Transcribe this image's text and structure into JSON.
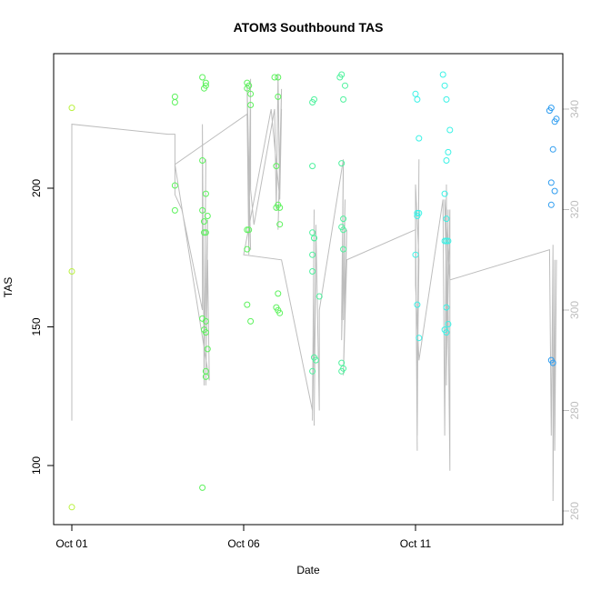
{
  "chart_data": {
    "type": "scatter",
    "title": "ATOM3 Southbound TAS",
    "xlabel": "Date",
    "ylabel": "TAS",
    "x_ticks": [
      {
        "label": "Oct 01",
        "day": 1
      },
      {
        "label": "Oct 06",
        "day": 6
      },
      {
        "label": "Oct 11",
        "day": 11
      }
    ],
    "xlim_days": [
      0.5,
      15.5
    ],
    "ylim": [
      80,
      245
    ],
    "y_ticks": [
      100,
      150,
      200
    ],
    "y2lim": [
      258,
      353
    ],
    "y2_ticks": [
      260,
      280,
      300,
      320,
      340
    ],
    "grid": false,
    "legend": "none",
    "colors": {
      "points_palette": [
        "#b9f23f",
        "#5cf25c",
        "#4ff29e",
        "#3bf2e6",
        "#2f9df0"
      ],
      "secondary_line": "#bdbdbd",
      "secondary_axis": "#bdbdbd",
      "box": "#000000"
    },
    "series": [
      {
        "color": "#b9f23f",
        "points": [
          [
            1.0,
            229
          ],
          [
            1.0,
            170
          ],
          [
            1.0,
            85
          ]
        ]
      },
      {
        "color": "#5cf25c",
        "points": [
          [
            4.0,
            233
          ],
          [
            4.0,
            231
          ],
          [
            4.0,
            201
          ],
          [
            4.0,
            192
          ],
          [
            4.8,
            240
          ],
          [
            4.9,
            238
          ],
          [
            4.85,
            236
          ],
          [
            4.9,
            237
          ],
          [
            4.8,
            210
          ],
          [
            4.8,
            192
          ],
          [
            4.9,
            198
          ],
          [
            4.95,
            190
          ],
          [
            4.85,
            184
          ],
          [
            4.9,
            184
          ],
          [
            4.85,
            188
          ],
          [
            4.9,
            152
          ],
          [
            4.85,
            149
          ],
          [
            4.9,
            148
          ],
          [
            4.95,
            142
          ],
          [
            4.9,
            134
          ],
          [
            4.9,
            132
          ],
          [
            4.8,
            153
          ],
          [
            4.8,
            92
          ],
          [
            6.1,
            238
          ],
          [
            6.15,
            237
          ],
          [
            6.2,
            234
          ],
          [
            6.1,
            236
          ],
          [
            6.2,
            230
          ],
          [
            6.1,
            185
          ],
          [
            6.15,
            185
          ],
          [
            6.1,
            178
          ],
          [
            6.1,
            158
          ],
          [
            6.2,
            152
          ],
          [
            6.9,
            240
          ],
          [
            7.0,
            240
          ],
          [
            7.0,
            233
          ],
          [
            6.95,
            208
          ],
          [
            7.0,
            194
          ],
          [
            6.95,
            193
          ],
          [
            7.05,
            193
          ],
          [
            7.05,
            187
          ],
          [
            7.0,
            162
          ],
          [
            6.95,
            157
          ],
          [
            7.0,
            156
          ],
          [
            7.05,
            155
          ]
        ]
      },
      {
        "color": "#4ff29e",
        "points": [
          [
            8.0,
            231
          ],
          [
            8.05,
            232
          ],
          [
            8.0,
            208
          ],
          [
            8.0,
            184
          ],
          [
            8.05,
            182
          ],
          [
            8.05,
            182
          ],
          [
            8.0,
            176
          ],
          [
            8.0,
            170
          ],
          [
            8.2,
            161
          ],
          [
            8.05,
            139
          ],
          [
            8.1,
            138
          ],
          [
            8.0,
            134
          ],
          [
            8.8,
            240
          ],
          [
            8.85,
            241
          ],
          [
            8.95,
            237
          ],
          [
            8.9,
            232
          ],
          [
            8.85,
            209
          ],
          [
            8.9,
            189
          ],
          [
            8.85,
            186
          ],
          [
            8.9,
            185
          ],
          [
            8.9,
            178
          ],
          [
            8.85,
            137
          ],
          [
            8.9,
            135
          ],
          [
            8.85,
            134
          ]
        ]
      },
      {
        "color": "#3bf2e6",
        "points": [
          [
            11.0,
            234
          ],
          [
            11.05,
            232
          ],
          [
            11.1,
            218
          ],
          [
            11.05,
            191
          ],
          [
            11.1,
            191
          ],
          [
            11.05,
            190
          ],
          [
            11.0,
            176
          ],
          [
            11.05,
            158
          ],
          [
            11.1,
            146
          ],
          [
            11.8,
            241
          ],
          [
            11.85,
            237
          ],
          [
            11.9,
            232
          ],
          [
            12.0,
            221
          ],
          [
            11.95,
            213
          ],
          [
            11.9,
            210
          ],
          [
            11.85,
            198
          ],
          [
            11.9,
            189
          ],
          [
            11.85,
            181
          ],
          [
            11.9,
            181
          ],
          [
            11.95,
            181
          ],
          [
            11.9,
            157
          ],
          [
            11.85,
            149
          ],
          [
            11.9,
            148
          ],
          [
            11.95,
            151
          ]
        ]
      },
      {
        "color": "#2f9df0",
        "points": [
          [
            14.9,
            228
          ],
          [
            14.95,
            229
          ],
          [
            15.05,
            224
          ],
          [
            15.1,
            225
          ],
          [
            15.0,
            214
          ],
          [
            14.95,
            202
          ],
          [
            15.05,
            199
          ],
          [
            14.95,
            194
          ],
          [
            14.95,
            138
          ],
          [
            15.0,
            137
          ]
        ]
      }
    ],
    "secondary_series": {
      "color": "#bdbdbd",
      "axis": "right",
      "points": [
        [
          1.0,
          278
        ],
        [
          1.0,
          337
        ],
        [
          3.8,
          335
        ],
        [
          4.0,
          335
        ],
        [
          4.0,
          329
        ],
        [
          4.0,
          330
        ],
        [
          4.0,
          323
        ],
        [
          4.2,
          320
        ],
        [
          4.8,
          300
        ],
        [
          4.8,
          337
        ],
        [
          4.85,
          285
        ],
        [
          4.9,
          330
        ],
        [
          4.85,
          290
        ],
        [
          4.95,
          318
        ],
        [
          4.9,
          285
        ],
        [
          4.95,
          310
        ],
        [
          5.0,
          286
        ],
        [
          4.0,
          329
        ],
        [
          6.1,
          339
        ],
        [
          6.15,
          311
        ],
        [
          6.1,
          345
        ],
        [
          6.2,
          312
        ],
        [
          6.1,
          344
        ],
        [
          6.15,
          318
        ],
        [
          6.2,
          346
        ],
        [
          6.15,
          312
        ],
        [
          6.2,
          340
        ],
        [
          6.2,
          324
        ],
        [
          6.3,
          317
        ],
        [
          6.9,
          340
        ],
        [
          6.95,
          320
        ],
        [
          7.0,
          347
        ],
        [
          7.05,
          322
        ],
        [
          7.1,
          344
        ],
        [
          7.0,
          316
        ],
        [
          7.1,
          340
        ],
        [
          7.05,
          322
        ],
        [
          6.8,
          340
        ],
        [
          6.0,
          311
        ],
        [
          7.1,
          310
        ],
        [
          8.0,
          280
        ],
        [
          8.05,
          320
        ],
        [
          8.0,
          278
        ],
        [
          8.1,
          312
        ],
        [
          8.05,
          277
        ],
        [
          8.1,
          317
        ],
        [
          8.2,
          280
        ],
        [
          8.2,
          300
        ],
        [
          8.9,
          330
        ],
        [
          8.85,
          298
        ],
        [
          8.9,
          328
        ],
        [
          8.85,
          294
        ],
        [
          8.95,
          322
        ],
        [
          8.9,
          298
        ],
        [
          9.0,
          316
        ],
        [
          8.9,
          287
        ],
        [
          9.0,
          310
        ],
        [
          11.0,
          316
        ],
        [
          11.05,
          272
        ],
        [
          11.0,
          320
        ],
        [
          11.05,
          275
        ],
        [
          11.1,
          330
        ],
        [
          11.05,
          285
        ],
        [
          11.1,
          310
        ],
        [
          11.0,
          325
        ],
        [
          11.0,
          305
        ],
        [
          11.1,
          290
        ],
        [
          11.8,
          322
        ],
        [
          11.85,
          275
        ],
        [
          11.9,
          325
        ],
        [
          11.9,
          285
        ],
        [
          11.95,
          320
        ],
        [
          11.9,
          287
        ],
        [
          12.0,
          320
        ],
        [
          12.0,
          268
        ],
        [
          11.95,
          300
        ],
        [
          11.9,
          306
        ],
        [
          11.85,
          322
        ],
        [
          12.0,
          306
        ],
        [
          14.9,
          312
        ],
        [
          14.95,
          275
        ],
        [
          15.0,
          313
        ],
        [
          15.0,
          262
        ],
        [
          15.05,
          310
        ],
        [
          15.05,
          272
        ],
        [
          15.1,
          310
        ]
      ]
    }
  }
}
